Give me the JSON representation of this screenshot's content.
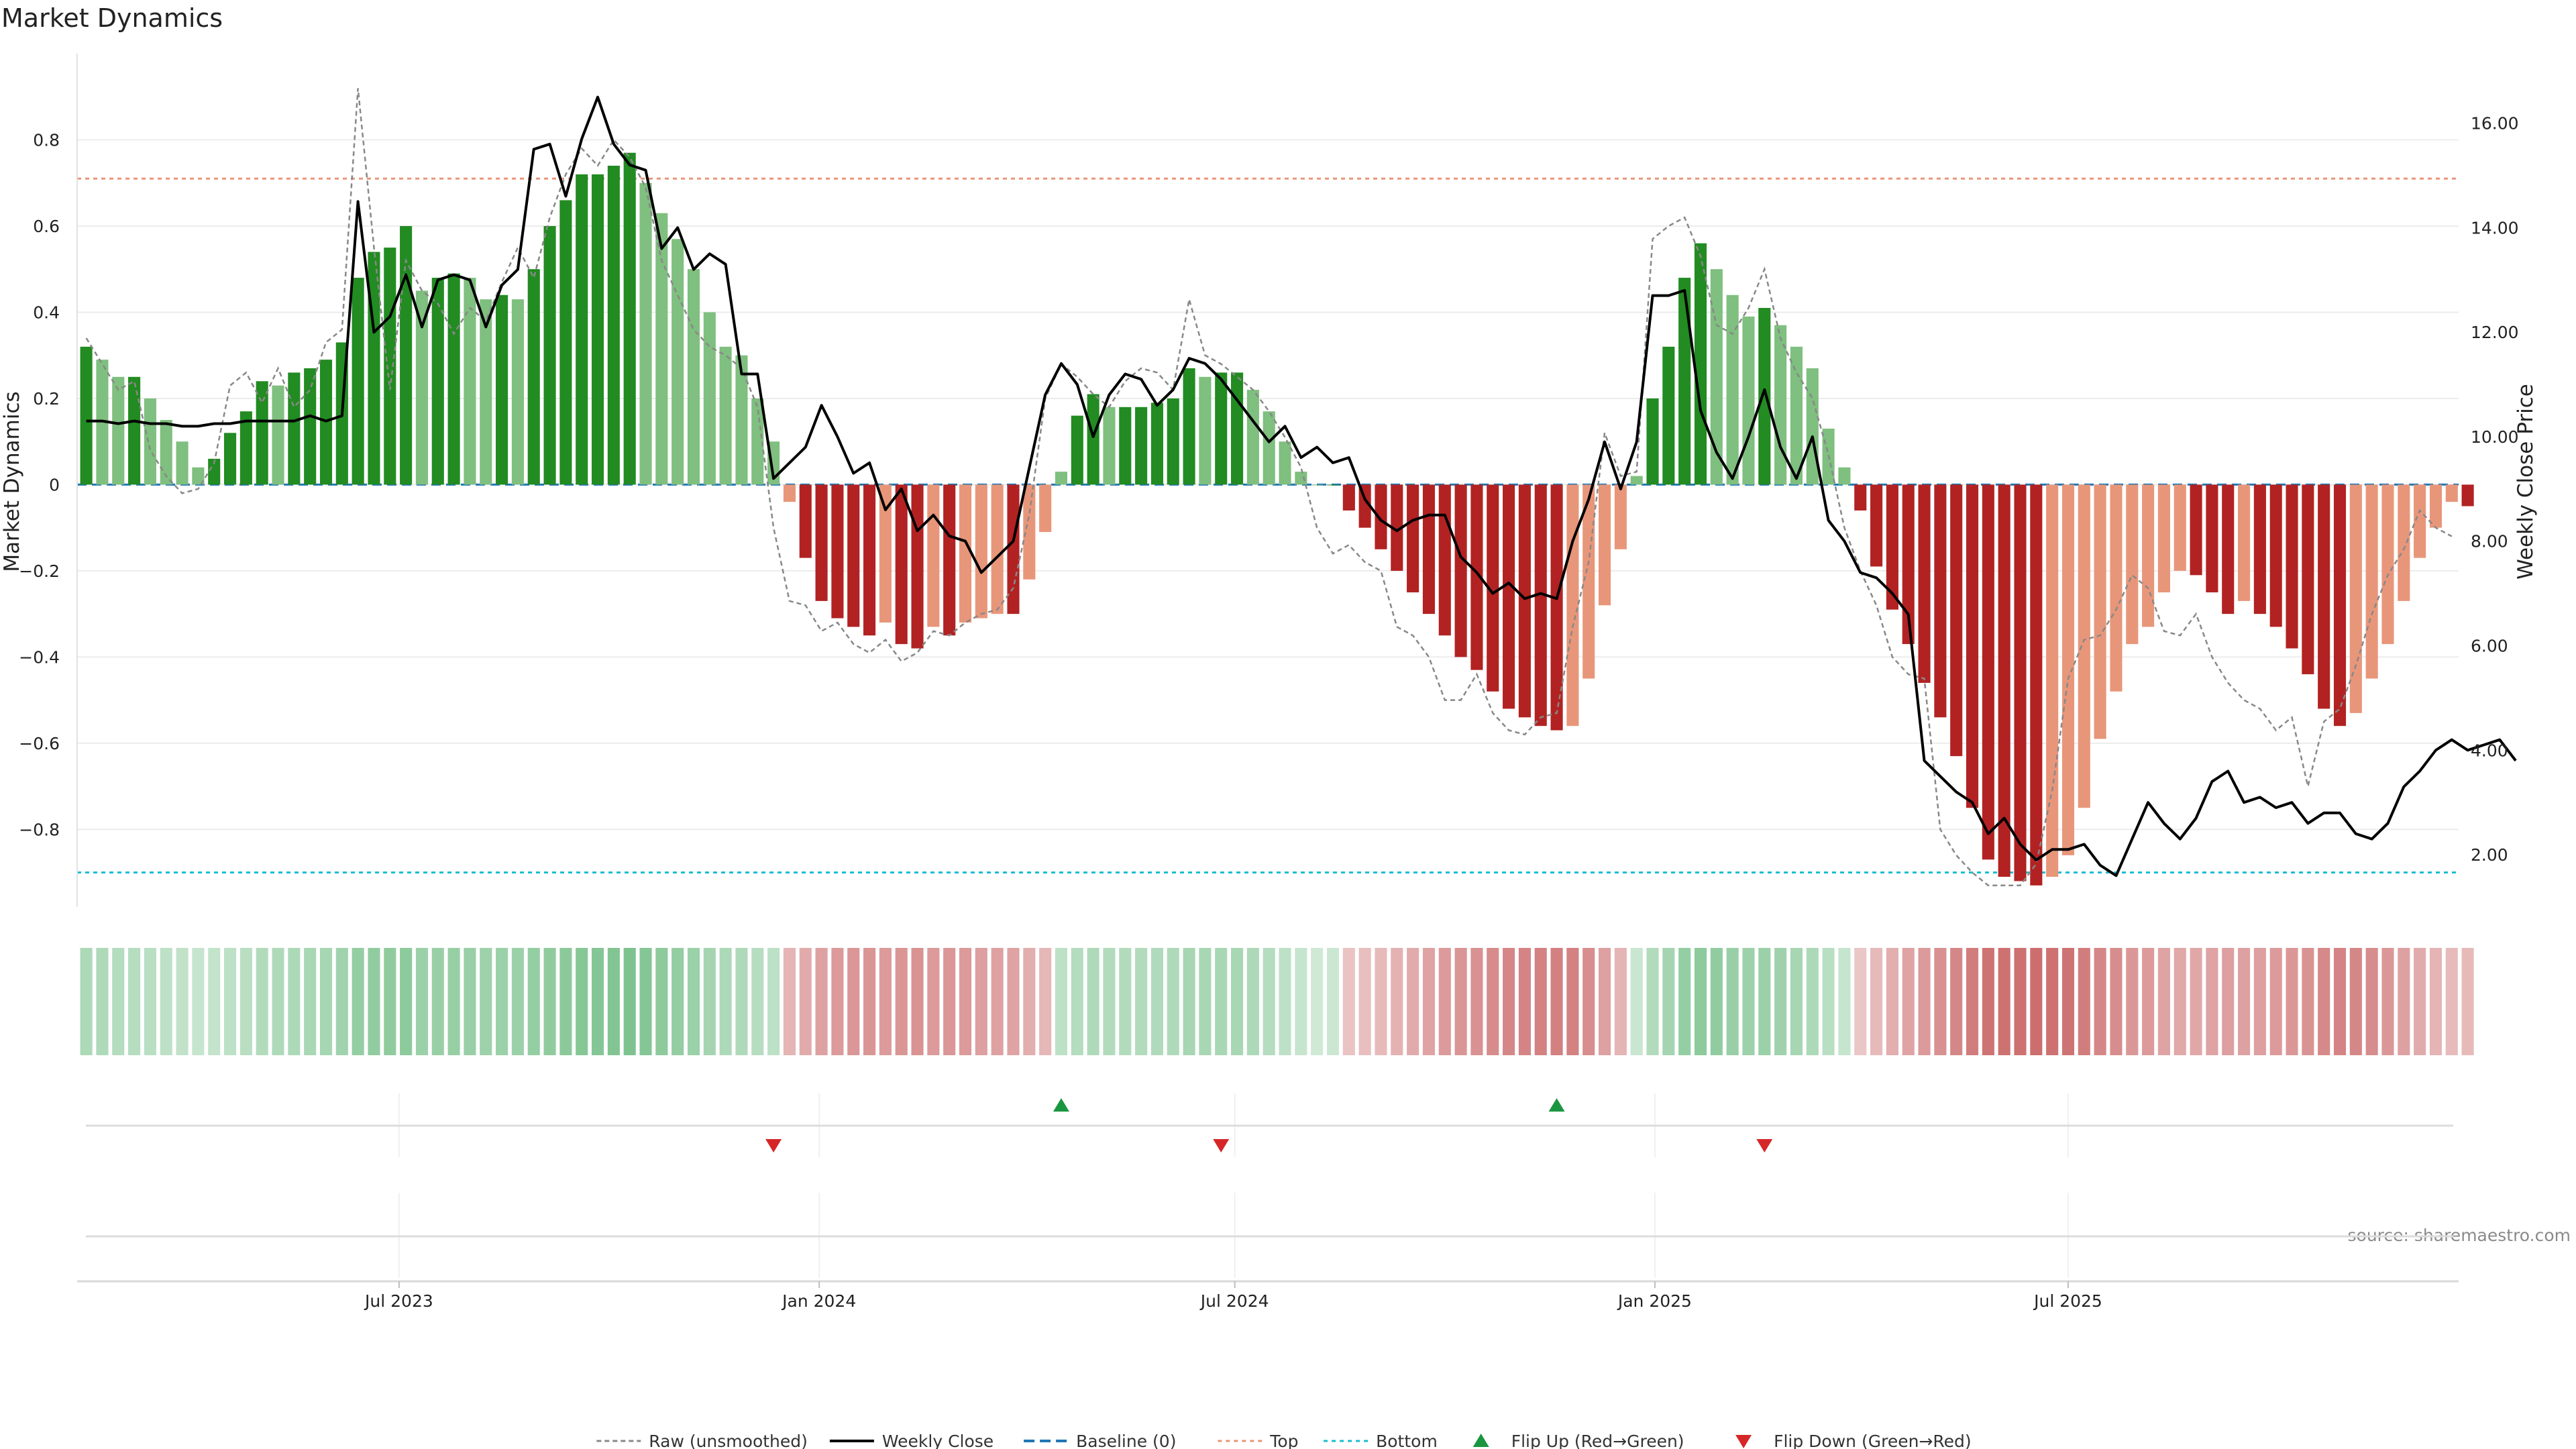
{
  "chart_data": {
    "type": "bar",
    "title": "Market Dynamics",
    "ylabel_left": "Market Dynamics",
    "ylabel_right": "Weekly Close Price",
    "source": "source: sharemaestro.com",
    "x_ticks": [
      "Jul 2023",
      "Jan 2024",
      "Jul 2024",
      "Jan 2025",
      "Jul 2025"
    ],
    "x_tick_dates": [
      "2023-07-01",
      "2024-01-01",
      "2024-07-01",
      "2025-01-01",
      "2025-07-01"
    ],
    "x_range": [
      "2023-02-10",
      "2025-12-19"
    ],
    "first_week": "2023-02-14",
    "week_step_days": 7,
    "ylim_left": [
      -0.98,
      1.0
    ],
    "yticks_left": [
      0.8,
      0.6,
      0.4,
      0.2,
      0,
      -0.2,
      -0.4,
      -0.6,
      -0.8
    ],
    "ytick_labels_left": [
      "0.8",
      "0.6",
      "0.4",
      "0.2",
      "0",
      "−0.2",
      "−0.4",
      "−0.6",
      "−0.8"
    ],
    "ylim_right": [
      1.0,
      17.33
    ],
    "yticks_right": [
      16,
      14,
      12,
      10,
      8,
      6,
      4,
      2
    ],
    "ytick_labels_right": [
      "16.00",
      "14.00",
      "12.00",
      "10.00",
      "8.00",
      "6.00",
      "4.00",
      "2.00"
    ],
    "reference_lines": {
      "baseline": 0,
      "top": 0.71,
      "bottom": -0.9
    },
    "colors": {
      "strong_up": "#228b22",
      "weak_up": "#7fbf7f",
      "strong_down": "#b22222",
      "weak_down": "#e8967a",
      "close": "#000000",
      "raw": "#888888",
      "baseline": "#1f77b4",
      "top": "#e8967a",
      "bottom": "#17becf",
      "flip_up": "#1a9641",
      "flip_down": "#d62728",
      "heat_green": "#2e9e4a",
      "heat_red": "#b22222"
    },
    "smoothed": [
      0.32,
      0.29,
      0.25,
      0.25,
      0.2,
      0.15,
      0.1,
      0.04,
      0.06,
      0.12,
      0.17,
      0.24,
      0.23,
      0.26,
      0.27,
      0.29,
      0.33,
      0.48,
      0.54,
      0.55,
      0.6,
      0.45,
      0.48,
      0.49,
      0.48,
      0.43,
      0.44,
      0.43,
      0.5,
      0.6,
      0.66,
      0.72,
      0.72,
      0.74,
      0.77,
      0.7,
      0.63,
      0.57,
      0.5,
      0.4,
      0.32,
      0.3,
      0.2,
      0.1,
      -0.04,
      -0.17,
      -0.27,
      -0.31,
      -0.33,
      -0.35,
      -0.32,
      -0.37,
      -0.38,
      -0.33,
      -0.35,
      -0.32,
      -0.31,
      -0.3,
      -0.3,
      -0.22,
      -0.11,
      0.03,
      0.16,
      0.21,
      0.18,
      0.18,
      0.18,
      0.19,
      0.2,
      0.27,
      0.25,
      0.26,
      0.26,
      0.22,
      0.17,
      0.1,
      0.03,
      0.0,
      0.0,
      -0.06,
      -0.1,
      -0.15,
      -0.2,
      -0.25,
      -0.3,
      -0.35,
      -0.4,
      -0.43,
      -0.48,
      -0.52,
      -0.54,
      -0.56,
      -0.57,
      -0.56,
      -0.45,
      -0.28,
      -0.15,
      0.02,
      0.2,
      0.32,
      0.48,
      0.56,
      0.5,
      0.44,
      0.39,
      0.41,
      0.37,
      0.32,
      0.27,
      0.13,
      0.04,
      -0.06,
      -0.19,
      -0.29,
      -0.37,
      -0.46,
      -0.54,
      -0.63,
      -0.75,
      -0.87,
      -0.91,
      -0.92,
      -0.93,
      -0.91,
      -0.86,
      -0.75,
      -0.59,
      -0.48,
      -0.37,
      -0.33,
      -0.25,
      -0.2,
      -0.21,
      -0.25,
      -0.3,
      -0.27,
      -0.3,
      -0.33,
      -0.38,
      -0.44,
      -0.52,
      -0.56,
      -0.53,
      -0.45,
      -0.37,
      -0.27,
      -0.17,
      -0.1,
      -0.04,
      -0.05
    ],
    "raw": [
      0.34,
      0.28,
      0.22,
      0.24,
      0.08,
      0.02,
      -0.02,
      -0.01,
      0.05,
      0.23,
      0.26,
      0.19,
      0.27,
      0.18,
      0.22,
      0.33,
      0.36,
      0.92,
      0.55,
      0.22,
      0.52,
      0.45,
      0.42,
      0.35,
      0.41,
      0.38,
      0.47,
      0.55,
      0.48,
      0.62,
      0.72,
      0.78,
      0.74,
      0.8,
      0.76,
      0.69,
      0.52,
      0.44,
      0.36,
      0.32,
      0.3,
      0.27,
      0.18,
      -0.1,
      -0.27,
      -0.28,
      -0.34,
      -0.32,
      -0.37,
      -0.39,
      -0.36,
      -0.41,
      -0.39,
      -0.34,
      -0.35,
      -0.32,
      -0.3,
      -0.29,
      -0.24,
      -0.07,
      0.2,
      0.28,
      0.25,
      0.21,
      0.18,
      0.24,
      0.27,
      0.26,
      0.22,
      0.43,
      0.3,
      0.28,
      0.25,
      0.22,
      0.17,
      0.11,
      0.04,
      -0.1,
      -0.16,
      -0.14,
      -0.18,
      -0.2,
      -0.33,
      -0.35,
      -0.4,
      -0.5,
      -0.5,
      -0.44,
      -0.53,
      -0.57,
      -0.58,
      -0.54,
      -0.53,
      -0.33,
      -0.18,
      0.12,
      0.02,
      0.03,
      0.57,
      0.6,
      0.62,
      0.53,
      0.37,
      0.35,
      0.41,
      0.5,
      0.34,
      0.26,
      0.2,
      0.07,
      -0.1,
      -0.2,
      -0.28,
      -0.4,
      -0.44,
      -0.45,
      -0.8,
      -0.86,
      -0.9,
      -0.93,
      -0.93,
      -0.93,
      -0.88,
      -0.71,
      -0.45,
      -0.36,
      -0.35,
      -0.29,
      -0.21,
      -0.24,
      -0.34,
      -0.35,
      -0.3,
      -0.4,
      -0.46,
      -0.5,
      -0.52,
      -0.57,
      -0.54,
      -0.7,
      -0.55,
      -0.52,
      -0.42,
      -0.3,
      -0.21,
      -0.15,
      -0.06,
      -0.1,
      -0.12
    ],
    "close": [
      10.3,
      10.3,
      10.25,
      10.3,
      10.25,
      10.25,
      10.2,
      10.2,
      10.25,
      10.25,
      10.3,
      10.3,
      10.3,
      10.3,
      10.4,
      10.3,
      10.4,
      14.5,
      12.0,
      12.3,
      13.1,
      12.1,
      13.0,
      13.1,
      13.0,
      12.1,
      12.9,
      13.2,
      15.5,
      15.6,
      14.6,
      15.7,
      16.5,
      15.6,
      15.2,
      15.1,
      13.6,
      14.0,
      13.2,
      13.5,
      13.3,
      11.2,
      11.2,
      9.2,
      9.5,
      9.8,
      10.6,
      10.0,
      9.3,
      9.5,
      8.6,
      9.0,
      8.2,
      8.5,
      8.1,
      8.0,
      7.4,
      7.7,
      8.0,
      9.4,
      10.8,
      11.4,
      11.0,
      10.0,
      10.8,
      11.2,
      11.1,
      10.6,
      10.9,
      11.5,
      11.4,
      11.1,
      10.7,
      10.3,
      9.9,
      10.2,
      9.6,
      9.8,
      9.5,
      9.6,
      8.8,
      8.4,
      8.2,
      8.4,
      8.5,
      8.5,
      7.7,
      7.4,
      7.0,
      7.2,
      6.9,
      7.0,
      6.9,
      8.0,
      8.8,
      9.9,
      9.0,
      9.9,
      12.7,
      12.7,
      12.8,
      10.5,
      9.7,
      9.2,
      10.0,
      10.9,
      9.8,
      9.2,
      10.0,
      8.4,
      8.0,
      7.4,
      7.3,
      7.0,
      6.6,
      3.8,
      3.5,
      3.2,
      3.0,
      2.4,
      2.7,
      2.2,
      1.9,
      2.1,
      2.1,
      2.2,
      1.8,
      1.6,
      2.3,
      3.0,
      2.6,
      2.3,
      2.7,
      3.4,
      3.6,
      3.0,
      3.1,
      2.9,
      3.0,
      2.6,
      2.8,
      2.8,
      2.4,
      2.3,
      2.6,
      3.3,
      3.6,
      4.0,
      4.2,
      4.0,
      4.1,
      4.2,
      3.8
    ],
    "heatmap_intensity": [
      0.45,
      0.42,
      0.38,
      0.36,
      0.33,
      0.3,
      0.27,
      0.22,
      0.25,
      0.3,
      0.34,
      0.4,
      0.42,
      0.45,
      0.48,
      0.5,
      0.55,
      0.65,
      0.68,
      0.7,
      0.72,
      0.6,
      0.62,
      0.63,
      0.62,
      0.58,
      0.6,
      0.6,
      0.65,
      0.7,
      0.74,
      0.78,
      0.8,
      0.82,
      0.85,
      0.8,
      0.72,
      0.66,
      0.6,
      0.52,
      0.45,
      0.42,
      0.36,
      0.3,
      0.35,
      0.42,
      0.5,
      0.55,
      0.58,
      0.6,
      0.55,
      0.6,
      0.62,
      0.56,
      0.58,
      0.55,
      0.52,
      0.5,
      0.48,
      0.4,
      0.32,
      0.3,
      0.38,
      0.42,
      0.4,
      0.4,
      0.4,
      0.41,
      0.42,
      0.5,
      0.48,
      0.48,
      0.48,
      0.44,
      0.38,
      0.3,
      0.22,
      0.15,
      0.18,
      0.22,
      0.26,
      0.3,
      0.36,
      0.42,
      0.48,
      0.55,
      0.6,
      0.63,
      0.68,
      0.72,
      0.74,
      0.76,
      0.77,
      0.76,
      0.65,
      0.5,
      0.35,
      0.2,
      0.4,
      0.52,
      0.65,
      0.72,
      0.68,
      0.62,
      0.58,
      0.6,
      0.56,
      0.5,
      0.45,
      0.33,
      0.22,
      0.2,
      0.3,
      0.4,
      0.48,
      0.56,
      0.64,
      0.72,
      0.8,
      0.88,
      0.9,
      0.9,
      0.92,
      0.9,
      0.88,
      0.8,
      0.72,
      0.66,
      0.58,
      0.55,
      0.48,
      0.44,
      0.45,
      0.48,
      0.52,
      0.5,
      0.52,
      0.55,
      0.58,
      0.62,
      0.7,
      0.74,
      0.72,
      0.66,
      0.58,
      0.5,
      0.42,
      0.35,
      0.28,
      0.3
    ],
    "flips": [
      {
        "type": "down",
        "date": "2023-12-12"
      },
      {
        "type": "up",
        "date": "2024-04-16"
      },
      {
        "type": "down",
        "date": "2024-06-25"
      },
      {
        "type": "up",
        "date": "2024-11-19"
      },
      {
        "type": "down",
        "date": "2025-02-18"
      }
    ],
    "legend": [
      {
        "label": "Raw (unsmoothed)",
        "kind": "raw"
      },
      {
        "label": "Weekly Close",
        "kind": "close"
      },
      {
        "label": "Baseline (0)",
        "kind": "baseline"
      },
      {
        "label": "Top",
        "kind": "top"
      },
      {
        "label": "Bottom",
        "kind": "bottom"
      },
      {
        "label": "Flip Up (Red→Green)",
        "kind": "flip_up"
      },
      {
        "label": "Flip Down (Green→Red)",
        "kind": "flip_down"
      }
    ],
    "legend_position": "bottom-center",
    "grid": true
  }
}
